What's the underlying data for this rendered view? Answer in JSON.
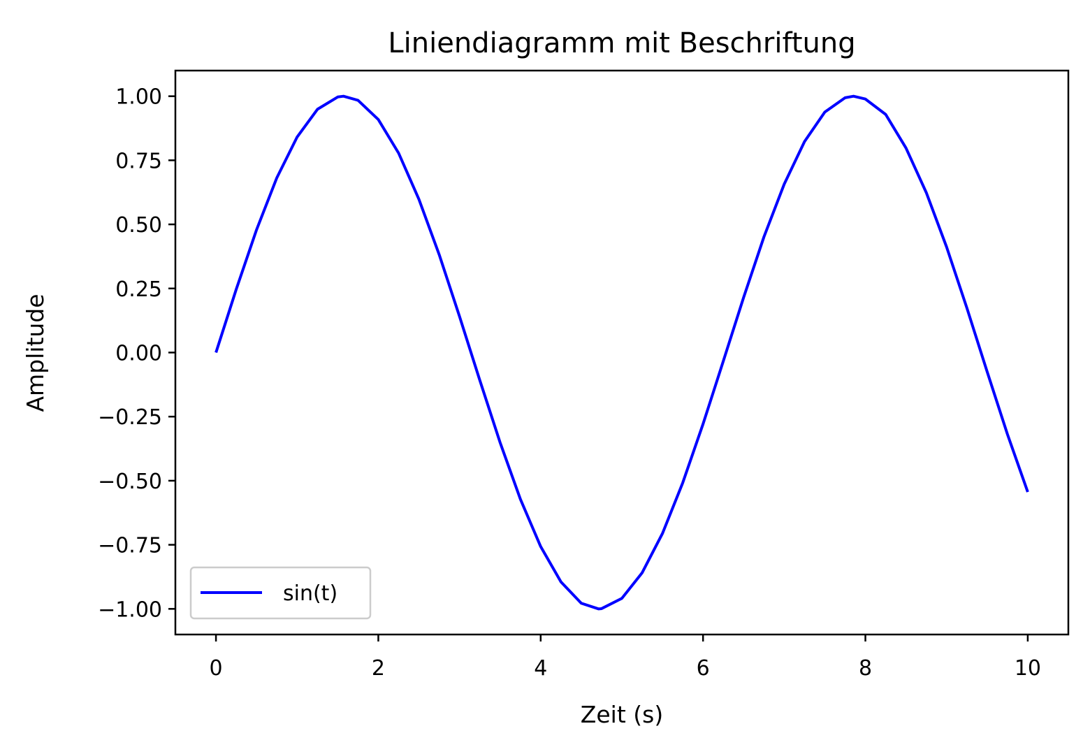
{
  "chart_data": {
    "type": "line",
    "title": "Liniendiagramm mit Beschriftung",
    "xlabel": "Zeit (s)",
    "ylabel": "Amplitude",
    "xlim": [
      -0.5,
      10.5
    ],
    "ylim": [
      -1.1,
      1.1
    ],
    "xticks": [
      0,
      2,
      4,
      6,
      8,
      10
    ],
    "xtick_labels": [
      "0",
      "2",
      "4",
      "6",
      "8",
      "10"
    ],
    "yticks": [
      1.0,
      0.75,
      0.5,
      0.25,
      0.0,
      -0.25,
      -0.5,
      -0.75,
      -1.0
    ],
    "ytick_labels": [
      "1.00",
      "0.75",
      "0.50",
      "0.25",
      "0.00",
      "−0.25",
      "−0.50",
      "−0.75",
      "−1.00"
    ],
    "grid": false,
    "legend_position": "lower-left",
    "series": [
      {
        "name": "sin(t)",
        "color": "#0000ff",
        "x": [
          0,
          0.25,
          0.5,
          0.75,
          1,
          1.25,
          1.5,
          1.571,
          1.75,
          2,
          2.25,
          2.5,
          2.75,
          3,
          3.25,
          3.5,
          3.75,
          4,
          4.25,
          4.5,
          4.712,
          4.75,
          5,
          5.25,
          5.5,
          5.75,
          6,
          6.25,
          6.5,
          6.75,
          7,
          7.25,
          7.5,
          7.75,
          7.854,
          8,
          8.25,
          8.5,
          8.75,
          9,
          9.25,
          9.5,
          9.75,
          10
        ],
        "y": [
          0,
          0.247,
          0.479,
          0.682,
          0.841,
          0.949,
          0.997,
          1.0,
          0.984,
          0.909,
          0.778,
          0.598,
          0.382,
          0.141,
          -0.108,
          -0.351,
          -0.572,
          -0.757,
          -0.895,
          -0.978,
          -1.0,
          -0.999,
          -0.959,
          -0.859,
          -0.706,
          -0.508,
          -0.279,
          -0.033,
          0.215,
          0.451,
          0.657,
          0.823,
          0.938,
          0.994,
          1.0,
          0.989,
          0.929,
          0.798,
          0.624,
          0.412,
          0.174,
          -0.075,
          -0.319,
          -0.544
        ]
      }
    ]
  }
}
